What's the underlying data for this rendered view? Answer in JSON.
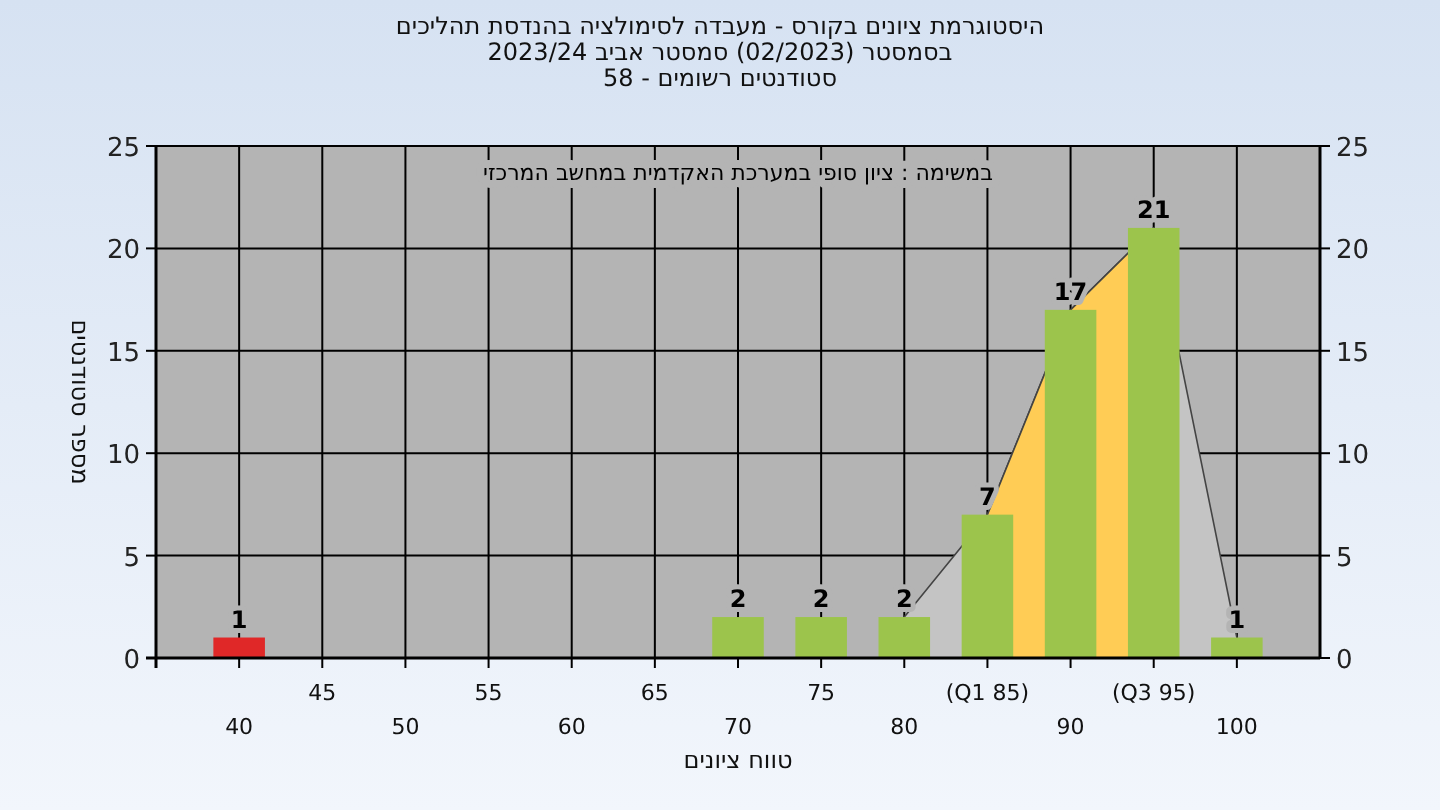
{
  "chart_data": {
    "type": "bar",
    "title": "היסטוגרמת ציונים בקורס - מעבדה לסימולציה בהנדסת תהליכים",
    "subtitle": "בסמסטר  (02/2023)  סמסטר אביב 2023/24\nסטודנטים רשומים - 58",
    "xlabel": "טווח ציונים",
    "ylabel": "מספר סטודנטים",
    "annotations": [
      "במשימה : ציון סופי במערכת האקדמית במחשב המרכזי"
    ],
    "categories": [
      "40",
      "45",
      "50",
      "55",
      "60",
      "65",
      "70",
      "75",
      "80",
      "(Q1 85)",
      "90",
      "(Q3 95)",
      "100"
    ],
    "series": [
      {
        "type": "area",
        "color": "#c4c4c4",
        "values": [
          null,
          null,
          null,
          null,
          null,
          null,
          null,
          null,
          2,
          7,
          17,
          21,
          1
        ]
      },
      {
        "type": "area",
        "color": "#ffcc55",
        "values": [
          null,
          null,
          null,
          null,
          null,
          null,
          null,
          null,
          null,
          7,
          17,
          21,
          null
        ]
      },
      {
        "type": "bar",
        "colors": [
          "#e02828",
          "#9cc44c",
          "#9cc44c",
          "#9cc44c",
          "#9cc44c",
          "#9cc44c",
          "#9cc44c",
          "#9cc44c",
          "#9cc44c",
          "#9cc44c",
          "#9cc44c",
          "#9cc44c",
          "#9cc44c"
        ],
        "values": [
          1,
          0,
          0,
          0,
          0,
          0,
          2,
          2,
          2,
          7,
          17,
          21,
          1
        ],
        "value_labels": [
          "1",
          null,
          null,
          null,
          null,
          null,
          "2",
          "2",
          "2",
          "7",
          "17",
          "21",
          "1"
        ]
      }
    ],
    "ylim": [
      0,
      25
    ],
    "yticks": [
      0,
      5,
      10,
      15,
      20,
      25
    ],
    "y2lim": [
      0,
      25
    ],
    "y2ticks": [
      0,
      5,
      10,
      15,
      20,
      25
    ],
    "grid": true
  }
}
